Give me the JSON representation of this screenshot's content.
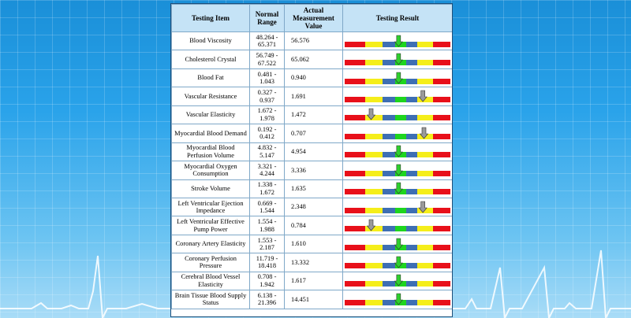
{
  "table": {
    "headers": [
      "Testing Item",
      "Normal Range",
      "Actual Measurement Value",
      "Testing Result"
    ],
    "rows": [
      {
        "item": "Blood Viscosity",
        "range": "48.264 - 65.371",
        "value": "56.576",
        "marker": 0.51,
        "status": "normal"
      },
      {
        "item": "Cholesterol Crystal",
        "range": "56.749 - 67.522",
        "value": "65.062",
        "marker": 0.51,
        "status": "normal"
      },
      {
        "item": "Blood Fat",
        "range": "0.481 - 1.043",
        "value": "0.940",
        "marker": 0.51,
        "status": "normal"
      },
      {
        "item": "Vascular Resistance",
        "range": "0.327 - 0.937",
        "value": "1.691",
        "marker": 0.74,
        "status": "high"
      },
      {
        "item": "Vascular Elasticity",
        "range": "1.672 - 1.978",
        "value": "1.472",
        "marker": 0.25,
        "status": "low"
      },
      {
        "item": "Myocardial Blood Demand",
        "range": "0.192 - 0.412",
        "value": "0.707",
        "marker": 0.75,
        "status": "high"
      },
      {
        "item": "Myocardial Blood Perfusion Volume",
        "range": "4.832 - 5.147",
        "value": "4.954",
        "marker": 0.51,
        "status": "normal"
      },
      {
        "item": "Myocardial Oxygen Consumption",
        "range": "3.321 - 4.244",
        "value": "3.336",
        "marker": 0.51,
        "status": "normal"
      },
      {
        "item": "Stroke Volume",
        "range": "1.338 - 1.672",
        "value": "1.635",
        "marker": 0.51,
        "status": "normal"
      },
      {
        "item": "Left Ventricular Ejection Impedance",
        "range": "0.669 - 1.544",
        "value": "2.348",
        "marker": 0.74,
        "status": "high"
      },
      {
        "item": "Left Ventricular Effective Pump Power",
        "range": "1.554 - 1.988",
        "value": "0.784",
        "marker": 0.25,
        "status": "low"
      },
      {
        "item": "Coronary Artery Elasticity",
        "range": "1.553 - 2.187",
        "value": "1.610",
        "marker": 0.51,
        "status": "normal"
      },
      {
        "item": "Coronary Perfusion Pressure",
        "range": "11.719 - 18.418",
        "value": "13.332",
        "marker": 0.51,
        "status": "normal"
      },
      {
        "item": "Cerebral Blood Vessel Elasticity",
        "range": "0.708 - 1.942",
        "value": "1.617",
        "marker": 0.51,
        "status": "normal"
      },
      {
        "item": "Brain Tissue Blood Supply Status",
        "range": "6.138 - 21.396",
        "value": "14.451",
        "marker": 0.51,
        "status": "normal"
      }
    ]
  },
  "colors": {
    "red": "#e8101a",
    "yellow": "#f5ee1a",
    "blue": "#3e6fb3",
    "green": "#1ed51e",
    "marker_normal": "#2ed02e",
    "marker_abnormal": "#9a9a9a",
    "header_bg": "#c5e3f6"
  }
}
